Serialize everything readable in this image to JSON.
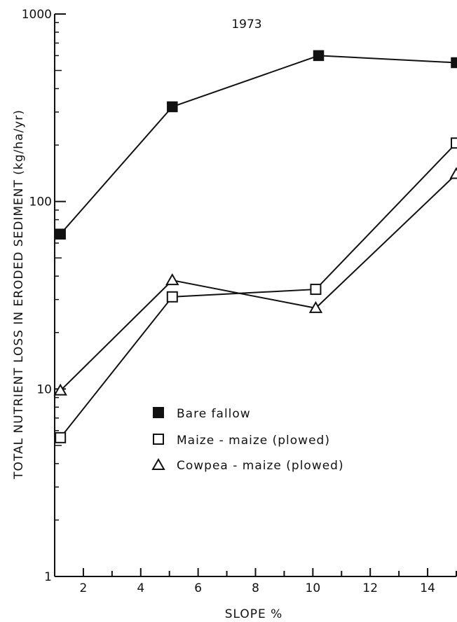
{
  "chart_data": {
    "type": "line",
    "title": "1973",
    "xlabel": "SLOPE %",
    "ylabel": "TOTAL NUTRIENT LOSS IN ERODED SEDIMENT (kg/ha/yr)",
    "x_scale": "linear",
    "y_scale": "log",
    "xlim": [
      1,
      15
    ],
    "ylim": [
      1,
      1000
    ],
    "x_ticks": [
      2,
      4,
      6,
      8,
      10,
      12,
      14
    ],
    "x_tick_labels": [
      "2",
      "4",
      "6",
      "8",
      "10",
      "12",
      "14"
    ],
    "y_ticks": [
      1,
      10,
      100,
      1000
    ],
    "y_tick_labels": [
      "1",
      "10",
      "100",
      "1000"
    ],
    "grid": false,
    "legend_position": "center-left",
    "series": [
      {
        "name": "Bare fallow",
        "marker": "filled-square",
        "x": [
          1.2,
          5.1,
          10.2,
          15
        ],
        "y": [
          67,
          320,
          600,
          550
        ]
      },
      {
        "name": "Maize - maize (plowed)",
        "marker": "open-square",
        "x": [
          1.2,
          5.1,
          10.1,
          15
        ],
        "y": [
          5.5,
          31,
          34,
          205
        ]
      },
      {
        "name": "Cowpea - maize (plowed)",
        "marker": "open-triangle",
        "x": [
          1.2,
          5.1,
          10.1,
          15
        ],
        "y": [
          9.8,
          38,
          27,
          140
        ]
      }
    ]
  }
}
